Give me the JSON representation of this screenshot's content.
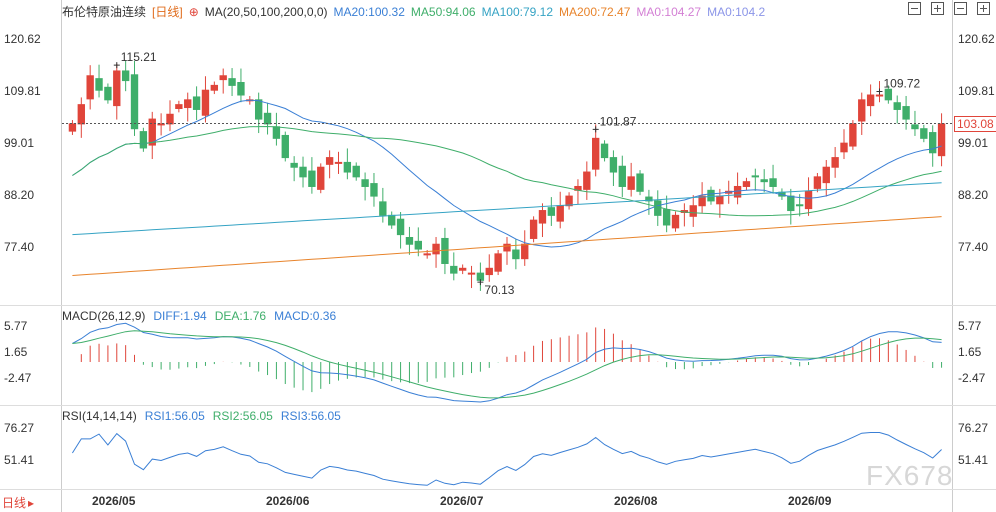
{
  "header": {
    "title": "布伦特原油连续",
    "period": "[日线]",
    "ma_label": "MA(20,50,100,200,0,0)",
    "ma_values": [
      {
        "label": "MA20:100.32",
        "color": "#3a7fd5"
      },
      {
        "label": "MA50:94.06",
        "color": "#3fae6a"
      },
      {
        "label": "MA100:79.12",
        "color": "#35a3c4"
      },
      {
        "label": "MA200:72.47",
        "color": "#e8842c"
      },
      {
        "label": "MA0:104.27",
        "color": "#d37fd4"
      },
      {
        "label": "MA0:104.2",
        "color": "#8b95e8"
      }
    ]
  },
  "macd_header": {
    "label": "MACD(26,12,9)",
    "diff": "DIFF:1.94",
    "dea": "DEA:1.76",
    "macd": "MACD:0.36"
  },
  "rsi_header": {
    "label": "RSI(14,14,14)",
    "rsi1": "RSI1:56.05",
    "rsi2": "RSI2:56.05",
    "rsi3": "RSI3:56.05"
  },
  "period_tab": "日线",
  "watermark": "FX678",
  "current_price": "103.08",
  "colors": {
    "up": "#e0453a",
    "down": "#3fae6a",
    "diff": "#3a7fd5",
    "dea": "#3fae6a",
    "rsi": "#3a7fd5"
  },
  "chart_data": {
    "type": "candlestick",
    "title": "布伦特原油连续",
    "price_ticks": [
      "120.62",
      "109.81",
      "99.01",
      "88.20",
      "77.40"
    ],
    "macd_ticks": [
      "5.77",
      "1.65",
      "-2.47"
    ],
    "rsi_ticks": [
      "76.27",
      "51.41"
    ],
    "x_ticks": [
      "2026/05",
      "2026/06",
      "2026/07",
      "2026/08",
      "2026/09"
    ],
    "price_range": [
      66,
      125
    ],
    "annotations": [
      {
        "text": "115.21",
        "value": 115.21
      },
      {
        "text": "101.87",
        "value": 101.87
      },
      {
        "text": "109.72",
        "value": 109.72
      },
      {
        "text": "70.13",
        "value": 70.13
      }
    ],
    "close": [
      103,
      107,
      113,
      110,
      108,
      114,
      112,
      102,
      98,
      104,
      103,
      105,
      107,
      108,
      106,
      110,
      111,
      113,
      111,
      109,
      108,
      104,
      103,
      100,
      96,
      94,
      92,
      90,
      94,
      96,
      95,
      93,
      92,
      90,
      88,
      84,
      82,
      80,
      78,
      77,
      76,
      78,
      74,
      72,
      73,
      72,
      70.5,
      73,
      76,
      78,
      75,
      78,
      83,
      85,
      84,
      86,
      88,
      90,
      93,
      100,
      96,
      93,
      90,
      92,
      89,
      87,
      84,
      82,
      84,
      85,
      86,
      88,
      87,
      88,
      89,
      90,
      91,
      92,
      91,
      90,
      88,
      85,
      86,
      89,
      92,
      94,
      96,
      99,
      103,
      108,
      109,
      109,
      108,
      106,
      104,
      102,
      100,
      97,
      103
    ]
  }
}
